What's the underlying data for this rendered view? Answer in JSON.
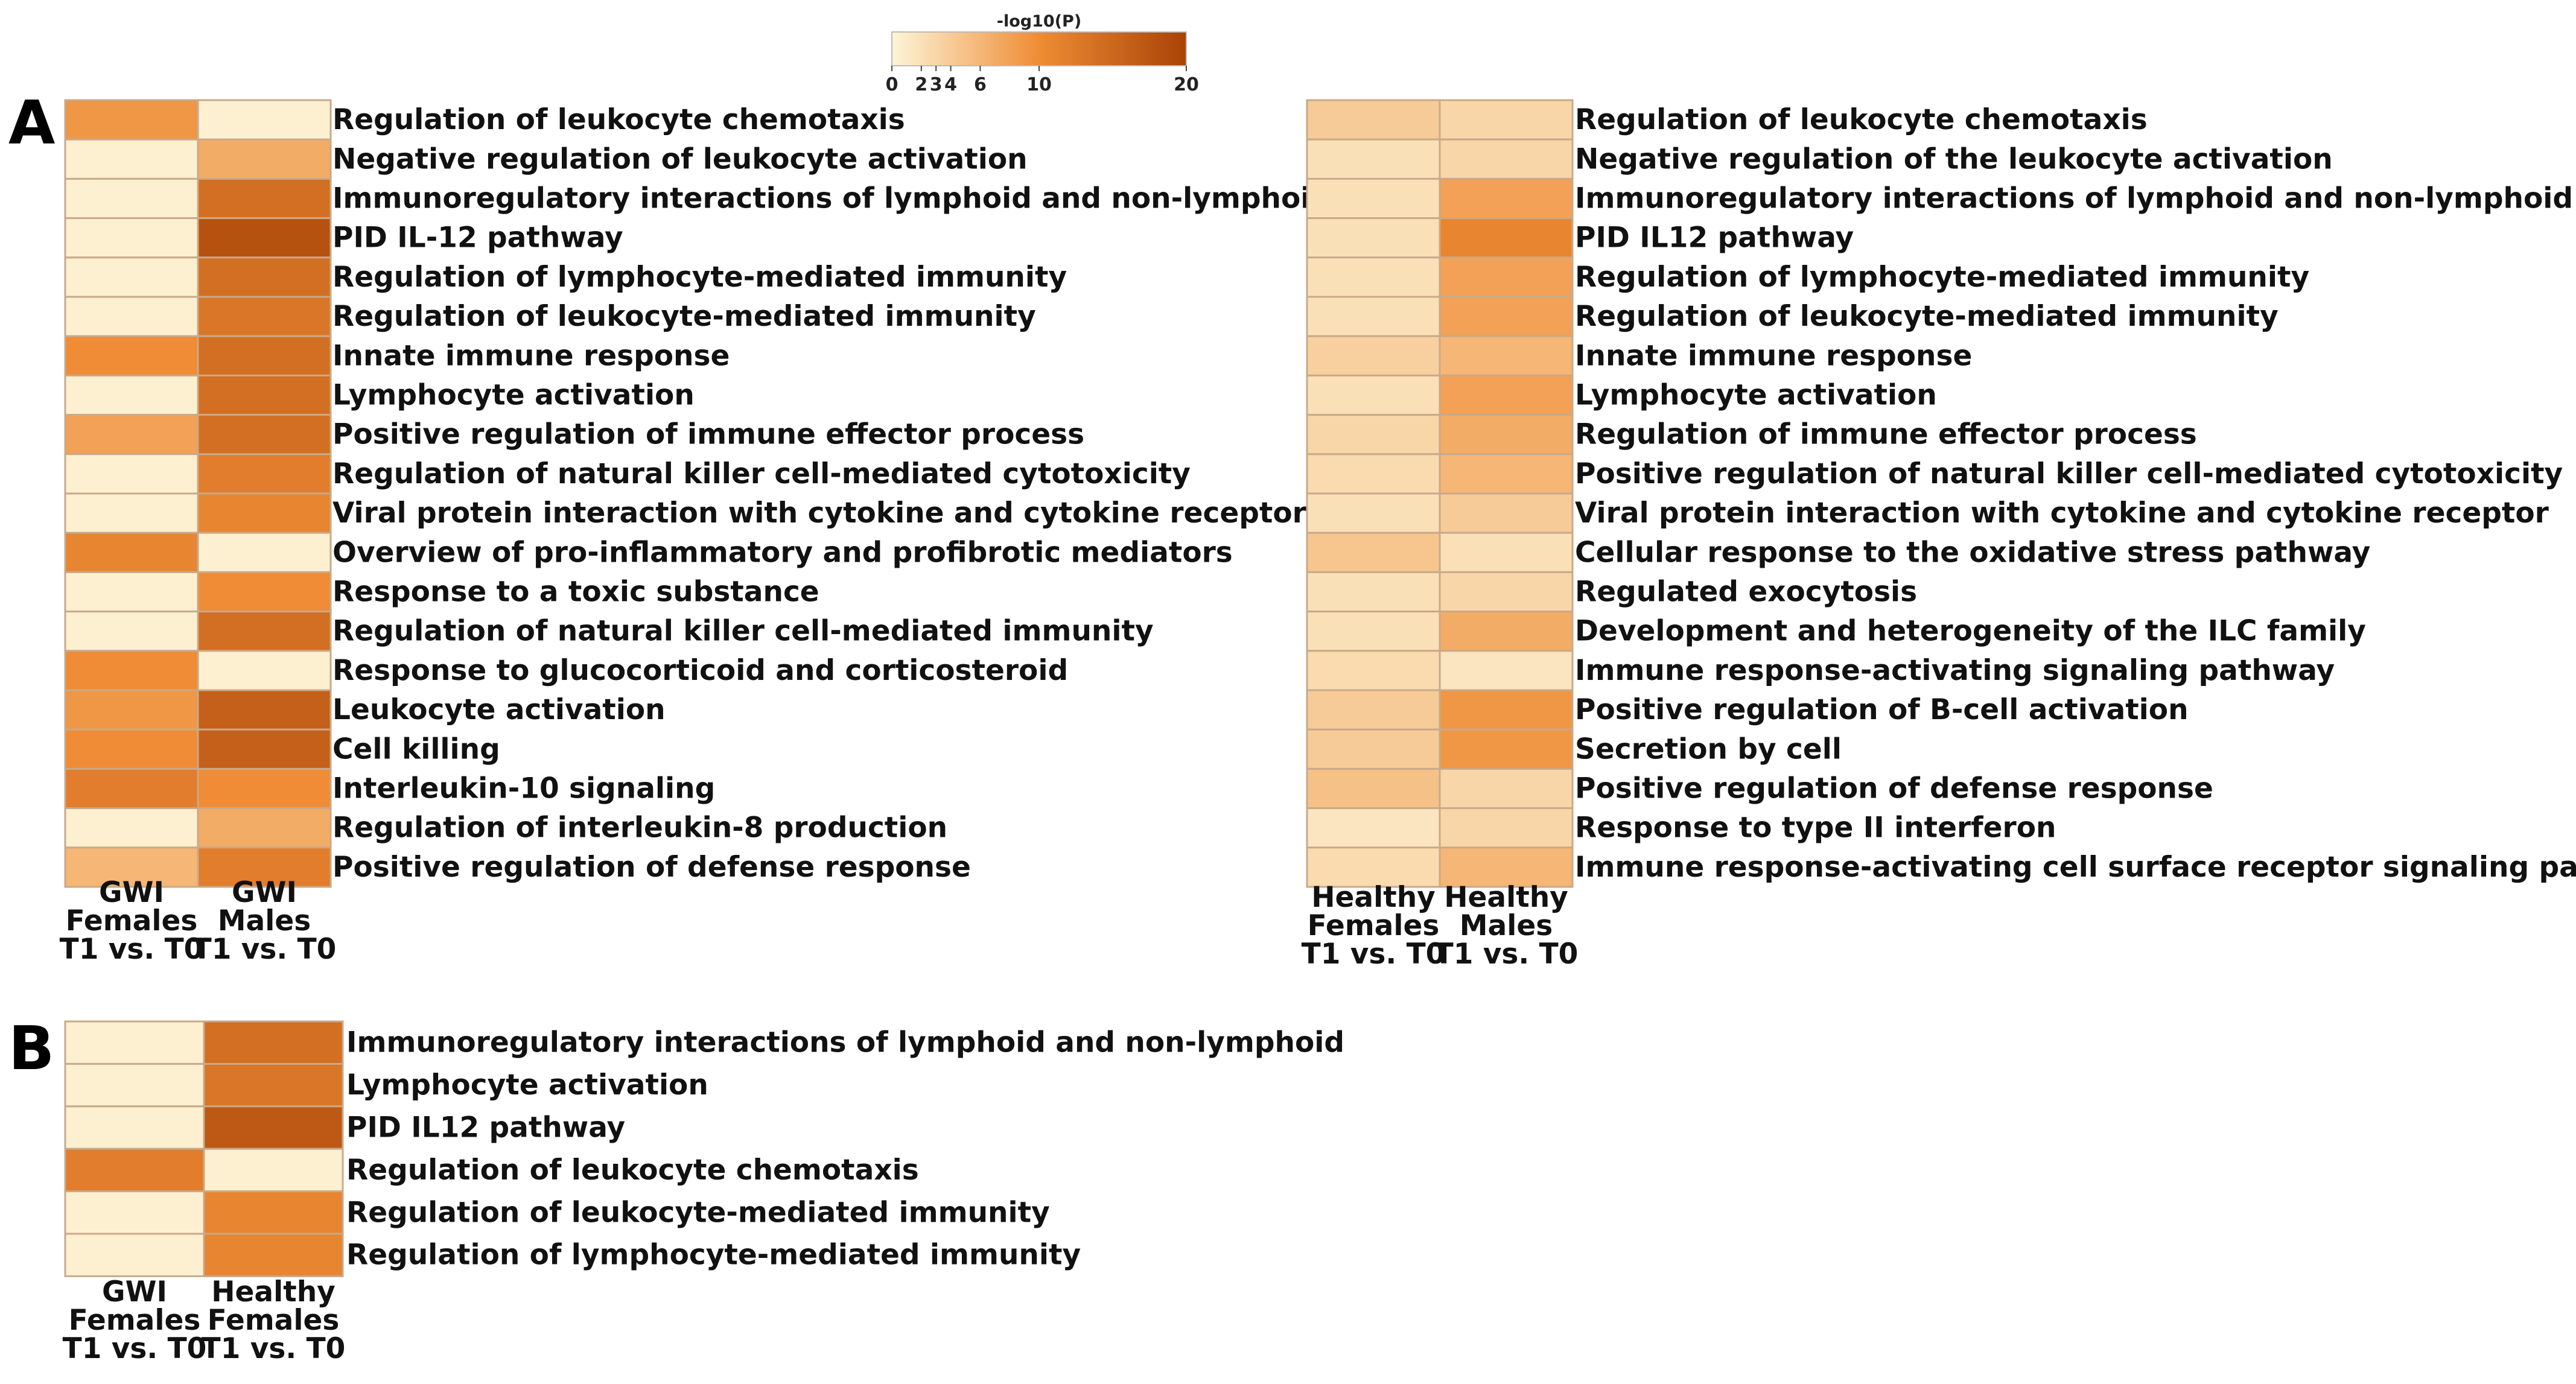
{
  "figure": {
    "panel_a_letter": "A",
    "panel_b_letter": "B"
  },
  "color_scale": {
    "title": "-log10(P)",
    "min": 0,
    "max": 20,
    "ticks": [
      "0",
      "2",
      "3",
      "4",
      "6",
      "10",
      "20"
    ],
    "tick_values": [
      0,
      2,
      3,
      4,
      6,
      10,
      20
    ],
    "low_color": "#fdf5d8",
    "mid_color": "#ef8c35",
    "high_color": "#a84306"
  },
  "chart_data": [
    {
      "type": "heatmap",
      "id": "A-left",
      "value_label": "-log10(P)",
      "columns": [
        [
          "GWI",
          "Females",
          "T1 vs. T0"
        ],
        [
          "GWI",
          "Males",
          "T1 vs. T0"
        ]
      ],
      "rows": [
        "Regulation of leukocyte chemotaxis",
        "Negative regulation of  leukocyte activation",
        "Immunoregulatory interactions of lymphoid and non-lymphoid cell",
        "PID IL-12 pathway",
        "Regulation of lymphocyte-mediated immunity",
        "Regulation of leukocyte-mediated immunity",
        "Innate immune response",
        "Lymphocyte activation",
        "Positive regulation of immune effector process",
        "Regulation of natural killer cell-mediated cytotoxicity",
        "Viral protein interaction with cytokine and cytokine receptor",
        "Overview of pro-inflammatory and profibrotic mediators",
        "Response to a toxic substance",
        "Regulation of natural killer cell-mediated immunity",
        "Response to glucocorticoid and corticosteroid",
        "Leukocyte activation",
        "Cell killing",
        "Interleukin-10 signaling",
        "Regulation of interleukin-8 production",
        "Positive regulation of defense response"
      ],
      "values": [
        [
          9,
          0.5
        ],
        [
          0.5,
          7
        ],
        [
          0.5,
          14
        ],
        [
          0.5,
          18
        ],
        [
          0.5,
          14
        ],
        [
          0.5,
          13
        ],
        [
          10,
          14
        ],
        [
          0.5,
          14
        ],
        [
          8,
          14
        ],
        [
          0.5,
          12
        ],
        [
          0.5,
          11
        ],
        [
          11,
          0.5
        ],
        [
          0.5,
          10
        ],
        [
          0.5,
          14
        ],
        [
          10,
          0.5
        ],
        [
          9,
          16
        ],
        [
          10,
          16
        ],
        [
          12,
          10
        ],
        [
          0.5,
          7
        ],
        [
          6,
          12
        ]
      ]
    },
    {
      "type": "heatmap",
      "id": "A-right",
      "value_label": "-log10(P)",
      "columns": [
        [
          "Healthy",
          "Females",
          "T1 vs. T0"
        ],
        [
          "Healthy",
          "Males",
          "T1 vs. T0"
        ]
      ],
      "rows": [
        "Regulation of leukocyte chemotaxis",
        "Negative regulation of the leukocyte activation",
        "Immunoregulatory interactions of lymphoid and non-lymphoid",
        "PID IL12 pathway",
        "Regulation of lymphocyte-mediated immunity",
        "Regulation of leukocyte-mediated immunity",
        "Innate immune response",
        "Lymphocyte activation",
        "Regulation of immune effector process",
        "Positive regulation of natural killer cell-mediated cytotoxicity",
        "Viral protein interaction with cytokine and cytokine receptor",
        "Cellular response to the oxidative stress pathway",
        "Regulated exocytosis",
        "Development and heterogeneity of the ILC family",
        "Immune response-activating signaling pathway",
        "Positive regulation of B-cell activation",
        "Secretion by cell",
        "Positive regulation of defense response",
        "Response to type II interferon",
        "Immune response-activating cell surface receptor signaling pathway"
      ],
      "values": [
        [
          4,
          3
        ],
        [
          2,
          3
        ],
        [
          2,
          8
        ],
        [
          2,
          11
        ],
        [
          2,
          8
        ],
        [
          2,
          8
        ],
        [
          3.5,
          6
        ],
        [
          2,
          8
        ],
        [
          3,
          7
        ],
        [
          2.5,
          6
        ],
        [
          2,
          4
        ],
        [
          4.5,
          2
        ],
        [
          2,
          3
        ],
        [
          2,
          7
        ],
        [
          2.5,
          1.5
        ],
        [
          4,
          9
        ],
        [
          4,
          9
        ],
        [
          5,
          3
        ],
        [
          1.5,
          3
        ],
        [
          2.5,
          6
        ]
      ]
    },
    {
      "type": "heatmap",
      "id": "B",
      "value_label": "-log10(P)",
      "columns": [
        [
          "GWI",
          "Females",
          "T1 vs. T0"
        ],
        [
          "Healthy",
          "Females",
          "T1 vs. T0"
        ]
      ],
      "rows": [
        "Immunoregulatory interactions of lymphoid and non-lymphoid",
        "Lymphocyte activation",
        "PID IL12 pathway",
        "Regulation of leukocyte chemotaxis",
        "Regulation of leukocyte-mediated immunity",
        "Regulation of lymphocyte-mediated immunity"
      ],
      "values": [
        [
          0.5,
          14
        ],
        [
          0.5,
          13
        ],
        [
          0.5,
          17
        ],
        [
          12,
          0.5
        ],
        [
          0.5,
          11
        ],
        [
          0.5,
          11
        ]
      ]
    }
  ]
}
